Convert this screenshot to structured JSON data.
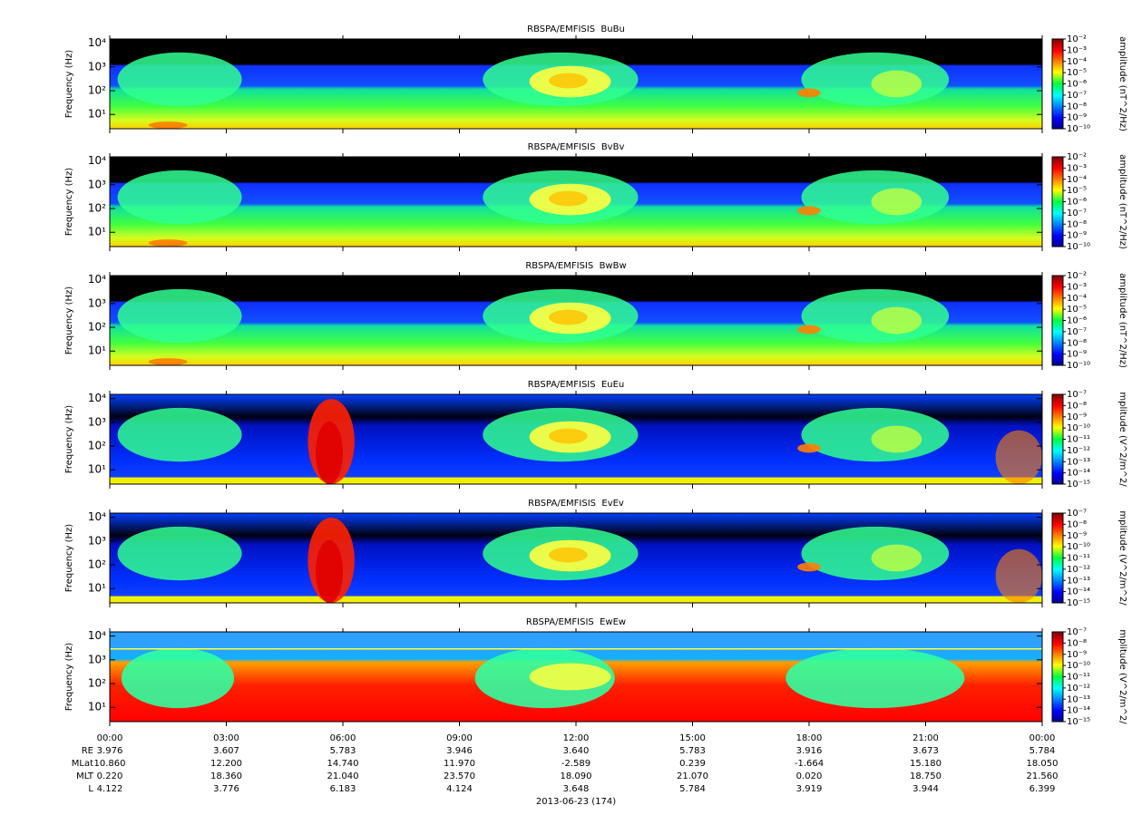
{
  "chart_data": [
    {
      "type": "spectrogram",
      "title": "RBSPA/EMFISIS  BuBu",
      "ylabel": "Frequency (Hz)",
      "ylog": true,
      "ylim": [
        2.5,
        15000
      ],
      "yticks": [
        {
          "value": 10,
          "label": "10¹"
        },
        {
          "value": 100,
          "label": "10²"
        },
        {
          "value": 1000,
          "label": "10³"
        },
        {
          "value": 10000,
          "label": "10⁴"
        }
      ],
      "zlim": [
        1e-10,
        0.01
      ],
      "zlog": true,
      "zlabel": "amplitude (nT^2/Hz)",
      "colormap": "jet",
      "zticks": [
        {
          "value": 0.01,
          "label": "10⁻²"
        },
        {
          "value": 0.001,
          "label": "10⁻³"
        },
        {
          "value": 0.0001,
          "label": "10⁻⁴"
        },
        {
          "value": 1e-05,
          "label": "10⁻⁵"
        },
        {
          "value": 1e-06,
          "label": "10⁻⁶"
        },
        {
          "value": 1e-07,
          "label": "10⁻⁷"
        },
        {
          "value": 1e-08,
          "label": "10⁻⁸"
        },
        {
          "value": 1e-09,
          "label": "10⁻⁹"
        },
        {
          "value": 1e-10,
          "label": "10⁻¹⁰"
        }
      ]
    },
    {
      "type": "spectrogram",
      "title": "RBSPA/EMFISIS  BvBv",
      "ylabel": "Frequency (Hz)",
      "ylog": true,
      "ylim": [
        2.5,
        15000
      ],
      "yticks": [
        {
          "value": 10,
          "label": "10¹"
        },
        {
          "value": 100,
          "label": "10²"
        },
        {
          "value": 1000,
          "label": "10³"
        },
        {
          "value": 10000,
          "label": "10⁴"
        }
      ],
      "zlim": [
        1e-10,
        0.01
      ],
      "zlog": true,
      "zlabel": "amplitude (nT^2/Hz)",
      "colormap": "jet",
      "zticks": [
        {
          "value": 0.01,
          "label": "10⁻²"
        },
        {
          "value": 0.001,
          "label": "10⁻³"
        },
        {
          "value": 0.0001,
          "label": "10⁻⁴"
        },
        {
          "value": 1e-05,
          "label": "10⁻⁵"
        },
        {
          "value": 1e-06,
          "label": "10⁻⁶"
        },
        {
          "value": 1e-07,
          "label": "10⁻⁷"
        },
        {
          "value": 1e-08,
          "label": "10⁻⁸"
        },
        {
          "value": 1e-09,
          "label": "10⁻⁹"
        },
        {
          "value": 1e-10,
          "label": "10⁻¹⁰"
        }
      ]
    },
    {
      "type": "spectrogram",
      "title": "RBSPA/EMFISIS  BwBw",
      "ylabel": "Frequency (Hz)",
      "ylog": true,
      "ylim": [
        2.5,
        15000
      ],
      "yticks": [
        {
          "value": 10,
          "label": "10¹"
        },
        {
          "value": 100,
          "label": "10²"
        },
        {
          "value": 1000,
          "label": "10³"
        },
        {
          "value": 10000,
          "label": "10⁴"
        }
      ],
      "zlim": [
        1e-10,
        0.01
      ],
      "zlog": true,
      "zlabel": "amplitude (nT^2/Hz)",
      "colormap": "jet",
      "zticks": [
        {
          "value": 0.01,
          "label": "10⁻²"
        },
        {
          "value": 0.001,
          "label": "10⁻³"
        },
        {
          "value": 0.0001,
          "label": "10⁻⁴"
        },
        {
          "value": 1e-05,
          "label": "10⁻⁵"
        },
        {
          "value": 1e-06,
          "label": "10⁻⁶"
        },
        {
          "value": 1e-07,
          "label": "10⁻⁷"
        },
        {
          "value": 1e-08,
          "label": "10⁻⁸"
        },
        {
          "value": 1e-09,
          "label": "10⁻⁹"
        },
        {
          "value": 1e-10,
          "label": "10⁻¹⁰"
        }
      ]
    },
    {
      "type": "spectrogram",
      "title": "RBSPA/EMFISIS  EuEu",
      "ylabel": "Frequency (Hz)",
      "ylog": true,
      "ylim": [
        2.5,
        15000
      ],
      "yticks": [
        {
          "value": 10,
          "label": "10¹"
        },
        {
          "value": 100,
          "label": "10²"
        },
        {
          "value": 1000,
          "label": "10³"
        },
        {
          "value": 10000,
          "label": "10⁴"
        }
      ],
      "zlim": [
        1e-15,
        1e-07
      ],
      "zlog": true,
      "zlabel": "mplitude (V^2/m^2/",
      "colormap": "jet",
      "zticks": [
        {
          "value": 1e-07,
          "label": "10⁻⁷"
        },
        {
          "value": 1e-08,
          "label": "10⁻⁸"
        },
        {
          "value": 1e-09,
          "label": "10⁻⁹"
        },
        {
          "value": 1e-10,
          "label": "10⁻¹⁰"
        },
        {
          "value": 1e-11,
          "label": "10⁻¹¹"
        },
        {
          "value": 1e-12,
          "label": "10⁻¹²"
        },
        {
          "value": 1e-13,
          "label": "10⁻¹³"
        },
        {
          "value": 1e-14,
          "label": "10⁻¹⁴"
        },
        {
          "value": 1e-15,
          "label": "10⁻¹⁵"
        }
      ]
    },
    {
      "type": "spectrogram",
      "title": "RBSPA/EMFISIS  EvEv",
      "ylabel": "Frequency (Hz)",
      "ylog": true,
      "ylim": [
        2.5,
        15000
      ],
      "yticks": [
        {
          "value": 10,
          "label": "10¹"
        },
        {
          "value": 100,
          "label": "10²"
        },
        {
          "value": 1000,
          "label": "10³"
        },
        {
          "value": 10000,
          "label": "10⁴"
        }
      ],
      "zlim": [
        1e-15,
        1e-07
      ],
      "zlog": true,
      "zlabel": "mplitude (V^2/m^2/",
      "colormap": "jet",
      "zticks": [
        {
          "value": 1e-07,
          "label": "10⁻⁷"
        },
        {
          "value": 1e-08,
          "label": "10⁻⁸"
        },
        {
          "value": 1e-09,
          "label": "10⁻⁹"
        },
        {
          "value": 1e-10,
          "label": "10⁻¹⁰"
        },
        {
          "value": 1e-11,
          "label": "10⁻¹¹"
        },
        {
          "value": 1e-12,
          "label": "10⁻¹²"
        },
        {
          "value": 1e-13,
          "label": "10⁻¹³"
        },
        {
          "value": 1e-14,
          "label": "10⁻¹⁴"
        },
        {
          "value": 1e-15,
          "label": "10⁻¹⁵"
        }
      ]
    },
    {
      "type": "spectrogram",
      "title": "RBSPA/EMFISIS  EwEw",
      "ylabel": "Frequency (Hz)",
      "ylog": true,
      "ylim": [
        2.5,
        15000
      ],
      "yticks": [
        {
          "value": 10,
          "label": "10¹"
        },
        {
          "value": 100,
          "label": "10²"
        },
        {
          "value": 1000,
          "label": "10³"
        },
        {
          "value": 10000,
          "label": "10⁴"
        }
      ],
      "zlim": [
        1e-15,
        1e-07
      ],
      "zlog": true,
      "zlabel": "mplitude (V^2/m^2/",
      "colormap": "jet",
      "zticks": [
        {
          "value": 1e-07,
          "label": "10⁻⁷"
        },
        {
          "value": 1e-08,
          "label": "10⁻⁸"
        },
        {
          "value": 1e-09,
          "label": "10⁻⁹"
        },
        {
          "value": 1e-10,
          "label": "10⁻¹⁰"
        },
        {
          "value": 1e-11,
          "label": "10⁻¹¹"
        },
        {
          "value": 1e-12,
          "label": "10⁻¹²"
        },
        {
          "value": 1e-13,
          "label": "10⁻¹³"
        },
        {
          "value": 1e-14,
          "label": "10⁻¹⁴"
        },
        {
          "value": 1e-15,
          "label": "10⁻¹⁵"
        }
      ]
    }
  ],
  "time_axis": {
    "xlim": [
      0,
      24
    ],
    "xticks": [
      {
        "value": 0,
        "label": "00:00"
      },
      {
        "value": 3,
        "label": "03:00"
      },
      {
        "value": 6,
        "label": "06:00"
      },
      {
        "value": 9,
        "label": "09:00"
      },
      {
        "value": 12,
        "label": "12:00"
      },
      {
        "value": 15,
        "label": "15:00"
      },
      {
        "value": 18,
        "label": "18:00"
      },
      {
        "value": 21,
        "label": "21:00"
      },
      {
        "value": 24,
        "label": "00:00"
      }
    ],
    "ephemeris": [
      {
        "label": "RE",
        "values": [
          3.976,
          3.607,
          5.783,
          3.946,
          3.64,
          5.783,
          3.916,
          3.673,
          5.784
        ],
        "value_labels": [
          "3.976",
          "3.607",
          "5.783",
          "3.946",
          "3.640",
          "5.783",
          "3.916",
          "3.673",
          "5.784"
        ]
      },
      {
        "label": "MLat",
        "values": [
          10.86,
          12.2,
          14.74,
          11.97,
          -2.589,
          0.239,
          -1.664,
          15.18,
          18.05
        ],
        "value_labels": [
          "10.860",
          "12.200",
          "14.740",
          "11.970",
          "-2.589",
          "0.239",
          "-1.664",
          "15.180",
          "18.050"
        ]
      },
      {
        "label": "MLT",
        "values": [
          0.22,
          18.36,
          21.04,
          23.57,
          18.09,
          21.07,
          0.02,
          18.75,
          21.56
        ],
        "value_labels": [
          "0.220",
          "18.360",
          "21.040",
          "23.570",
          "18.090",
          "21.070",
          "0.020",
          "18.750",
          "21.560"
        ]
      },
      {
        "label": "L",
        "values": [
          4.122,
          3.776,
          6.183,
          4.124,
          3.648,
          5.784,
          3.919,
          3.944,
          6.399
        ],
        "value_labels": [
          "4.122",
          "3.776",
          "6.183",
          "4.124",
          "3.648",
          "5.784",
          "3.919",
          "3.944",
          "6.399"
        ]
      }
    ],
    "date": "2013-06-23 (174)"
  }
}
